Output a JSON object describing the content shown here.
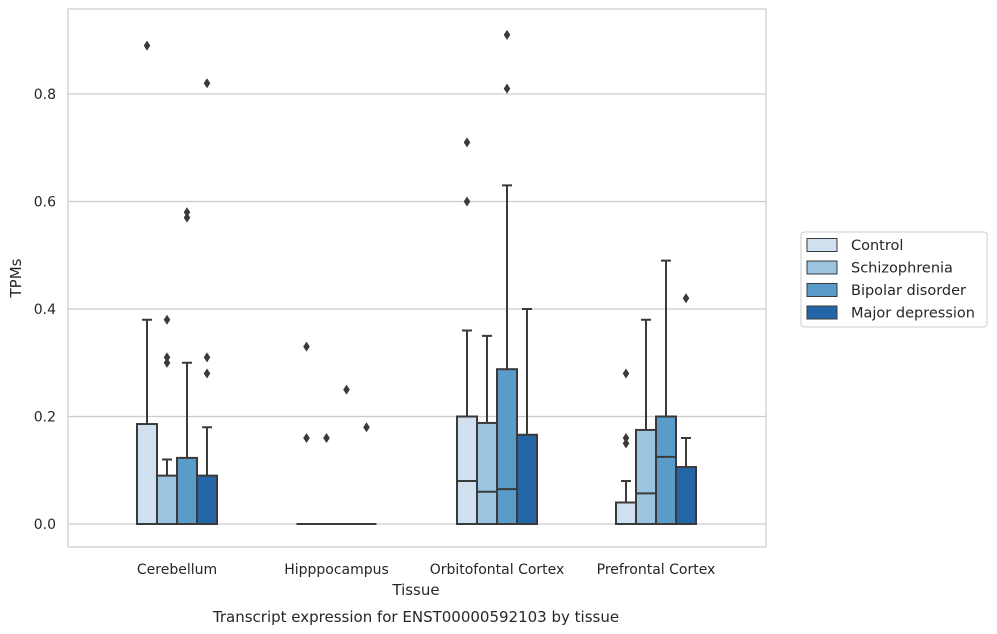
{
  "chart_data": {
    "type": "box",
    "title": "",
    "caption": "Transcript expression for ENST00000592103 by tissue",
    "xlabel": "Tissue",
    "ylabel": "TPMs",
    "ylim": [
      -0.045,
      0.958
    ],
    "yticks": [
      0.0,
      0.2,
      0.4,
      0.6,
      0.8
    ],
    "ytick_labels": [
      "0.0",
      "0.2",
      "0.4",
      "0.6",
      "0.8"
    ],
    "grid": "horizontal",
    "legend_position": "right",
    "categories": [
      "Cerebellum",
      "Hipppocampus",
      "Orbitofontal Cortex",
      "Prefrontal Cortex"
    ],
    "series": [
      {
        "name": "Control",
        "color": "#d1e0ef",
        "boxes": [
          {
            "q1": 0.0,
            "median": 0.0,
            "q3": 0.186,
            "whisker_low": 0.0,
            "whisker_high": 0.38,
            "outliers": [
              0.89
            ]
          },
          {
            "q1": 0.0,
            "median": 0.0,
            "q3": 0.0,
            "whisker_low": 0.0,
            "whisker_high": 0.0,
            "outliers": [
              0.33,
              0.16
            ]
          },
          {
            "q1": 0.0,
            "median": 0.08,
            "q3": 0.2,
            "whisker_low": 0.0,
            "whisker_high": 0.36,
            "outliers": [
              0.71,
              0.6
            ]
          },
          {
            "q1": 0.0,
            "median": 0.0,
            "q3": 0.04,
            "whisker_low": 0.0,
            "whisker_high": 0.08,
            "outliers": [
              0.28,
              0.16,
              0.15
            ]
          }
        ]
      },
      {
        "name": "Schizophrenia",
        "color": "#9ac4df",
        "boxes": [
          {
            "q1": 0.0,
            "median": 0.0,
            "q3": 0.09,
            "whisker_low": 0.0,
            "whisker_high": 0.12,
            "outliers": [
              0.38,
              0.31,
              0.3
            ]
          },
          {
            "q1": 0.0,
            "median": 0.0,
            "q3": 0.0,
            "whisker_low": 0.0,
            "whisker_high": 0.0,
            "outliers": [
              0.16
            ]
          },
          {
            "q1": 0.0,
            "median": 0.06,
            "q3": 0.188,
            "whisker_low": 0.0,
            "whisker_high": 0.35,
            "outliers": []
          },
          {
            "q1": 0.0,
            "median": 0.057,
            "q3": 0.175,
            "whisker_low": 0.0,
            "whisker_high": 0.38,
            "outliers": []
          }
        ]
      },
      {
        "name": "Bipolar disorder",
        "color": "#5a9cc9",
        "boxes": [
          {
            "q1": 0.0,
            "median": 0.0,
            "q3": 0.123,
            "whisker_low": 0.0,
            "whisker_high": 0.3,
            "outliers": [
              0.58,
              0.57
            ]
          },
          {
            "q1": 0.0,
            "median": 0.0,
            "q3": 0.0,
            "whisker_low": 0.0,
            "whisker_high": 0.0,
            "outliers": [
              0.25
            ]
          },
          {
            "q1": 0.0,
            "median": 0.065,
            "q3": 0.288,
            "whisker_low": 0.0,
            "whisker_high": 0.63,
            "outliers": [
              0.91,
              0.81
            ]
          },
          {
            "q1": 0.0,
            "median": 0.125,
            "q3": 0.2,
            "whisker_low": 0.0,
            "whisker_high": 0.49,
            "outliers": []
          }
        ]
      },
      {
        "name": "Major depression",
        "color": "#2465a7",
        "boxes": [
          {
            "q1": 0.0,
            "median": 0.0,
            "q3": 0.09,
            "whisker_low": 0.0,
            "whisker_high": 0.18,
            "outliers": [
              0.82,
              0.31,
              0.28
            ]
          },
          {
            "q1": 0.0,
            "median": 0.0,
            "q3": 0.0,
            "whisker_low": 0.0,
            "whisker_high": 0.0,
            "outliers": [
              0.18
            ]
          },
          {
            "q1": 0.0,
            "median": 0.0,
            "q3": 0.166,
            "whisker_low": 0.0,
            "whisker_high": 0.4,
            "outliers": []
          },
          {
            "q1": 0.0,
            "median": 0.0,
            "q3": 0.106,
            "whisker_low": 0.0,
            "whisker_high": 0.16,
            "outliers": [
              0.42
            ]
          }
        ]
      }
    ]
  }
}
